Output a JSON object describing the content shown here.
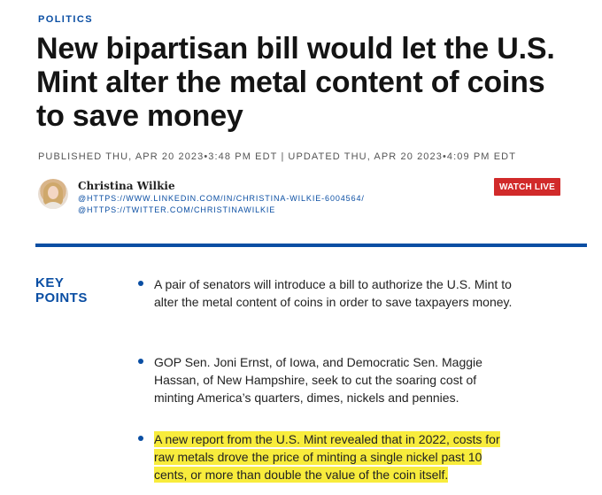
{
  "section": "POLITICS",
  "headline": "New bipartisan bill would let the U.S. Mint alter the metal content of coins to save money",
  "timestamps": {
    "published": "PUBLISHED THU, APR 20 2023•3:48 PM EDT",
    "separator": "|",
    "updated": "UPDATED THU, APR 20 2023•4:09 PM EDT"
  },
  "author": {
    "name": "Christina Wilkie",
    "linkedin": "@HTTPS://WWW.LINKEDIN.COM/IN/CHRISTINA-WILKIE-6004564/",
    "twitter": "@HTTPS://TWITTER.COM/CHRISTINAWILKIE"
  },
  "watch_live": "WATCH LIVE",
  "key_points": {
    "title": "KEY POINTS",
    "items": [
      "A pair of senators will introduce a bill to authorize the U.S. Mint to alter the metal content of coins in order to save taxpayers money.",
      "GOP Sen. Joni Ernst, of Iowa, and Democratic Sen. Maggie Hassan, of New Hampshire, seek to cut the soaring cost of minting America’s quarters, dimes, nickels and pennies.",
      "A new report from the U.S. Mint revealed that in 2022, costs for raw metals drove the price of minting a single nickel past 10 cents, or more than double the value of the coin itself."
    ]
  },
  "colors": {
    "accent": "#0a4ea3",
    "live": "#d12a2a",
    "highlight": "#f8ec3c"
  }
}
